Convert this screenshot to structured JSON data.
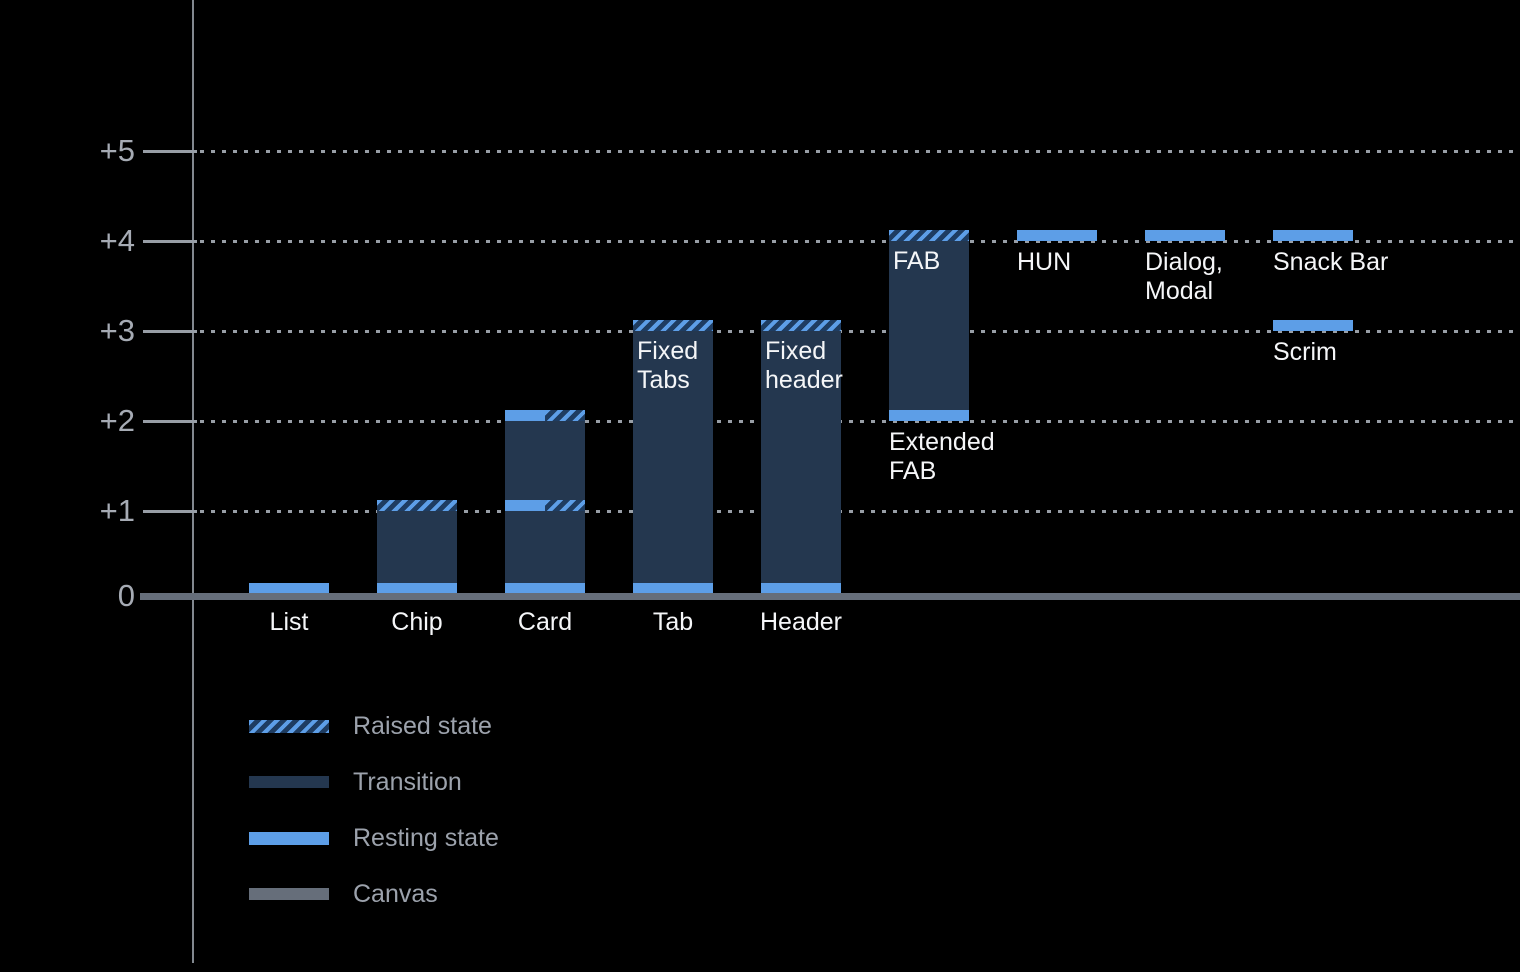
{
  "chart_data": {
    "type": "bar",
    "title": "",
    "description": "Elevation diagram of UI components (dp levels 0 to +5)",
    "y_axis": {
      "ticks": [
        "+5",
        "+4",
        "+3",
        "+2",
        "+1",
        "0"
      ],
      "levels": [
        5,
        4,
        3,
        2,
        1,
        0
      ],
      "ylim": [
        0,
        5.5
      ]
    },
    "layout_hints": {
      "grid": "dotted horizontal lines at each level",
      "legend_position": "bottom-left",
      "background": "#000000"
    },
    "components": [
      {
        "name": "list",
        "col": 0,
        "label": "List",
        "levels": {
          "resting": [
            0
          ]
        },
        "segments": [
          {
            "kind": "resting",
            "at": 0
          }
        ]
      },
      {
        "name": "chip",
        "col": 1,
        "label": "Chip",
        "levels": {
          "resting": [
            0
          ],
          "raised": [
            1
          ]
        },
        "segments": [
          {
            "kind": "resting",
            "at": 0
          },
          {
            "kind": "transition",
            "from": 0,
            "to": 1
          },
          {
            "kind": "raised",
            "at": 1
          }
        ]
      },
      {
        "name": "card",
        "col": 2,
        "label": "Card",
        "levels": {
          "resting": [
            0,
            1,
            2
          ],
          "raised": [
            1,
            2
          ]
        },
        "segments": [
          {
            "kind": "resting",
            "at": 0
          },
          {
            "kind": "transition",
            "from": 0,
            "to": 1
          },
          {
            "kind": "resting-raised",
            "at": 1
          },
          {
            "kind": "transition",
            "from": 1,
            "to": 2
          },
          {
            "kind": "resting-raised",
            "at": 2
          }
        ]
      },
      {
        "name": "tab",
        "col": 3,
        "label": "Tab",
        "inner_label": "Fixed\nTabs",
        "levels": {
          "resting": [
            0
          ],
          "raised": [
            3
          ]
        },
        "segments": [
          {
            "kind": "resting",
            "at": 0
          },
          {
            "kind": "transition",
            "from": 0,
            "to": 3
          },
          {
            "kind": "raised",
            "at": 3
          }
        ]
      },
      {
        "name": "header",
        "col": 4,
        "label": "Header",
        "inner_label": "Fixed\nheader",
        "levels": {
          "resting": [
            0
          ],
          "raised": [
            3
          ]
        },
        "segments": [
          {
            "kind": "resting",
            "at": 0
          },
          {
            "kind": "transition",
            "from": 0,
            "to": 3
          },
          {
            "kind": "raised",
            "at": 3
          }
        ]
      },
      {
        "name": "fab",
        "col": 5,
        "inner_label": "FAB",
        "sub_label": "Extended\nFAB",
        "levels": {
          "resting": [
            2
          ],
          "raised": [
            4
          ]
        },
        "segments": [
          {
            "kind": "resting",
            "at": 2
          },
          {
            "kind": "transition",
            "from": 2,
            "to": 4
          },
          {
            "kind": "raised",
            "at": 4
          }
        ]
      },
      {
        "name": "hun",
        "col": 6,
        "sub_label": "HUN",
        "levels": {
          "resting": [
            4
          ]
        },
        "segments": [
          {
            "kind": "resting",
            "at": 4
          }
        ]
      },
      {
        "name": "dialog-modal",
        "col": 7,
        "sub_label": "Dialog,\nModal",
        "levels": {
          "resting": [
            4
          ]
        },
        "segments": [
          {
            "kind": "resting",
            "at": 4
          }
        ]
      },
      {
        "name": "snack-bar",
        "col": 8,
        "sub_label": "Snack Bar",
        "levels": {
          "resting": [
            4
          ]
        },
        "segments": [
          {
            "kind": "resting",
            "at": 4
          }
        ]
      },
      {
        "name": "scrim",
        "col": 8,
        "sub_label": "Scrim",
        "levels": {
          "resting": [
            3
          ]
        },
        "segments": [
          {
            "kind": "resting",
            "at": 3
          }
        ]
      }
    ],
    "legend": [
      {
        "swatch": "raised",
        "label": "Raised state"
      },
      {
        "swatch": "transition",
        "label": "Transition"
      },
      {
        "swatch": "resting",
        "label": "Resting state"
      },
      {
        "swatch": "canvas",
        "label": "Canvas"
      }
    ],
    "colors": {
      "background": "#000000",
      "resting": "#5D9EE7",
      "transition": "#24374F",
      "raised_stripe": "#5D9EE7",
      "raised_gap": "#1E3C61",
      "canvas": "#666E7A",
      "gridline": "#989EA6",
      "axis_line": "#82888F",
      "tick_label": "#A6ABB4",
      "bar_label": "#F5F6F8",
      "legend_text": "#9CA2AC"
    }
  }
}
